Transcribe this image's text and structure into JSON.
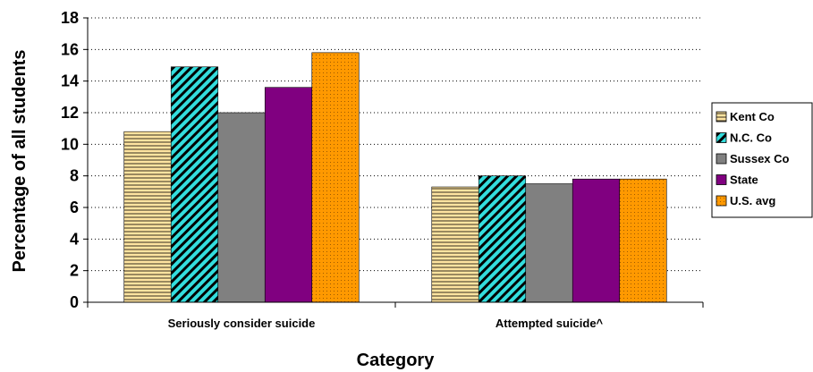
{
  "chart_data": {
    "type": "bar",
    "title": "",
    "xlabel": "Category",
    "ylabel": "Percentage of all students",
    "ylim": [
      0,
      18
    ],
    "yticks": [
      0,
      2,
      4,
      6,
      8,
      10,
      12,
      14,
      16,
      18
    ],
    "categories": [
      "Seriously consider suicide",
      "Attempted suicide^"
    ],
    "grid": "horizontal dotted",
    "legend_position": "right",
    "series": [
      {
        "name": "Kent Co",
        "values": [
          10.8,
          7.3
        ],
        "color": "#ffe4a0",
        "pattern": "horizontal-lines"
      },
      {
        "name": "N.C. Co",
        "values": [
          14.9,
          8.0
        ],
        "color": "#33dddd",
        "pattern": "diagonal-stripes"
      },
      {
        "name": "Sussex Co",
        "values": [
          12.0,
          7.5
        ],
        "color": "#808080",
        "pattern": "solid"
      },
      {
        "name": "State",
        "values": [
          13.6,
          7.8
        ],
        "color": "#800080",
        "pattern": "solid"
      },
      {
        "name": "U.S. avg",
        "values": [
          15.8,
          7.8
        ],
        "color": "#ff9900",
        "pattern": "dots"
      }
    ]
  }
}
